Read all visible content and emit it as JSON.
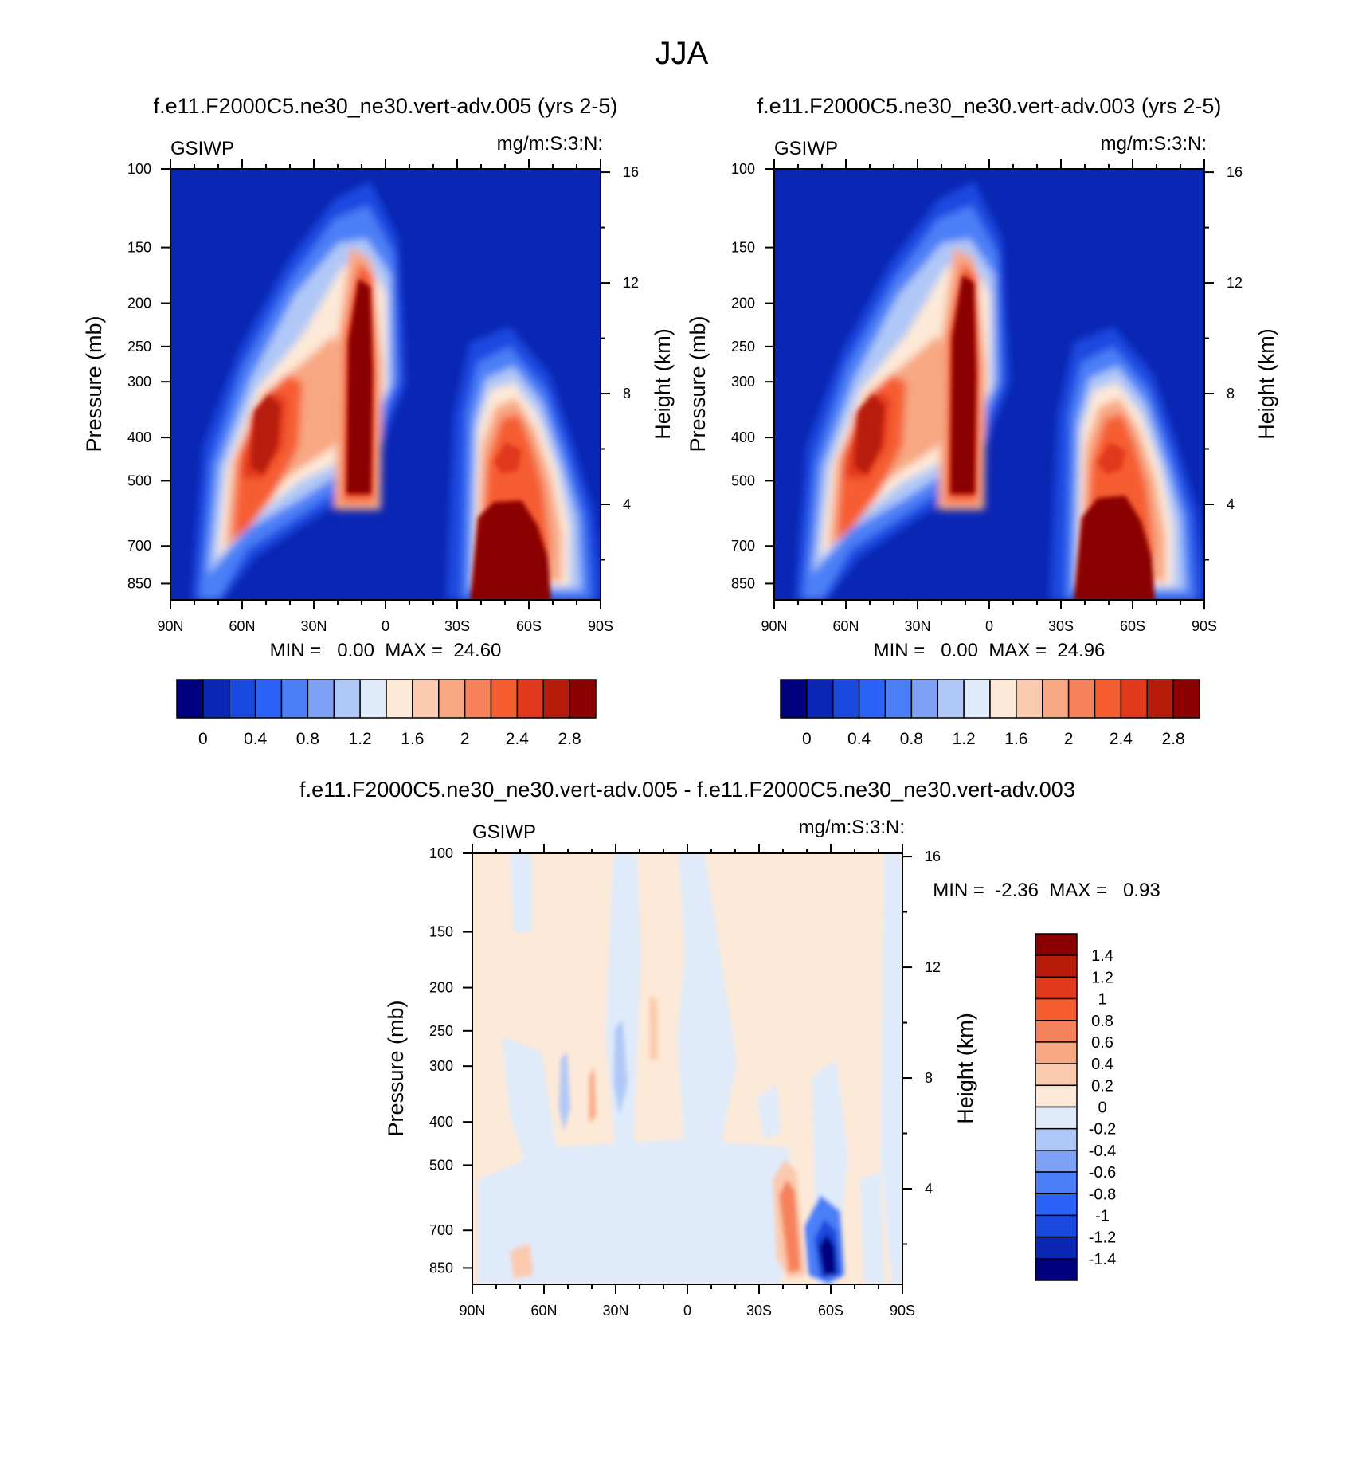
{
  "figure_title": "JJA",
  "colors": {
    "levels15": [
      "#00007f",
      "#0a26b4",
      "#1a49e0",
      "#2b62f7",
      "#4c7ff7",
      "#7ea1f5",
      "#b0c8f7",
      "#dfebfb",
      "#fde9d7",
      "#fbcaae",
      "#f8a783",
      "#f6825c",
      "#f65d30",
      "#e0391b",
      "#b71c0b",
      "#8b0000"
    ],
    "diff": [
      "#00007f",
      "#0a26b4",
      "#1a49e0",
      "#2b62f7",
      "#4c7ff7",
      "#7ea1f5",
      "#b0c8f7",
      "#dfebfb",
      "#fde9d7",
      "#fbcaae",
      "#f8a783",
      "#f6825c",
      "#f65d30",
      "#e0391b",
      "#b71c0b",
      "#8b0000"
    ]
  },
  "chart_data": [
    {
      "type": "heatmap",
      "title": "f.e11.F2000C5.ne30_ne30.vert-adv.005 (yrs 2-5)",
      "left_label": "GSIWP",
      "right_label": "mg/m:S:3:N:",
      "ylabel": "Pressure (mb)",
      "y2label": "Height (km)",
      "xticks": [
        "90N",
        "60N",
        "30N",
        "0",
        "30S",
        "60S",
        "90S"
      ],
      "yticks": [
        "100",
        "150",
        "200",
        "250",
        "300",
        "400",
        "500",
        "700",
        "850"
      ],
      "y2ticks": [
        "16",
        "12",
        "8",
        "4"
      ],
      "stats": "MIN =   0.00  MAX =  24.60",
      "colorbar_labels": [
        "0",
        "0.4",
        "0.8",
        "1.2",
        "1.6",
        "2",
        "2.4",
        "2.8"
      ],
      "xlim": [
        90,
        -90
      ],
      "ylim": [
        100,
        925
      ]
    },
    {
      "type": "heatmap",
      "title": "f.e11.F2000C5.ne30_ne30.vert-adv.003 (yrs 2-5)",
      "left_label": "GSIWP",
      "right_label": "mg/m:S:3:N:",
      "ylabel": "Pressure (mb)",
      "y2label": "Height (km)",
      "xticks": [
        "90N",
        "60N",
        "30N",
        "0",
        "30S",
        "60S",
        "90S"
      ],
      "yticks": [
        "100",
        "150",
        "200",
        "250",
        "300",
        "400",
        "500",
        "700",
        "850"
      ],
      "y2ticks": [
        "16",
        "12",
        "8",
        "4"
      ],
      "stats": "MIN =   0.00  MAX =  24.96",
      "colorbar_labels": [
        "0",
        "0.4",
        "0.8",
        "1.2",
        "1.6",
        "2",
        "2.4",
        "2.8"
      ],
      "xlim": [
        90,
        -90
      ],
      "ylim": [
        100,
        925
      ]
    },
    {
      "type": "heatmap",
      "title": "f.e11.F2000C5.ne30_ne30.vert-adv.005 - f.e11.F2000C5.ne30_ne30.vert-adv.003",
      "left_label": "GSIWP",
      "right_label": "mg/m:S:3:N:",
      "ylabel": "Pressure (mb)",
      "y2label": "Height (km)",
      "xticks": [
        "90N",
        "60N",
        "30N",
        "0",
        "30S",
        "60S",
        "90S"
      ],
      "yticks": [
        "100",
        "150",
        "200",
        "250",
        "300",
        "400",
        "500",
        "700",
        "850"
      ],
      "y2ticks": [
        "16",
        "12",
        "8",
        "4"
      ],
      "stats": "MIN =  -2.36  MAX =   0.93",
      "colorbar_labels": [
        "1.4",
        "1.2",
        "1",
        "0.8",
        "0.6",
        "0.4",
        "0.2",
        "0",
        "-0.2",
        "-0.4",
        "-0.6",
        "-0.8",
        "-1",
        "-1.2",
        "-1.4"
      ],
      "xlim": [
        90,
        -90
      ],
      "ylim": [
        100,
        925
      ]
    }
  ]
}
